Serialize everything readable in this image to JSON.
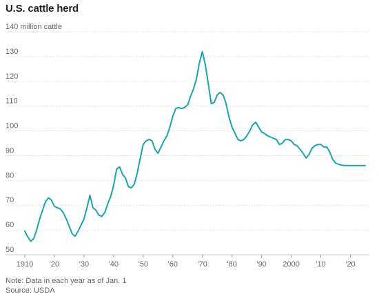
{
  "title": "U.S. cattle herd",
  "note": "Note: Data in each year as of Jan. 1",
  "source": "Source: USDA",
  "colors": {
    "line": "#1aa3ad",
    "grid": "#d4d4d4",
    "text": "#666666"
  },
  "chart_data": {
    "type": "line",
    "title": "U.S. cattle herd",
    "ylabel": "",
    "xlabel": "",
    "ylim": [
      50,
      140
    ],
    "xlim": [
      1910,
      2025
    ],
    "y_ticks": [
      50,
      60,
      70,
      80,
      90,
      100,
      110,
      120,
      130,
      140
    ],
    "y_tick_labels": [
      "50",
      "60",
      "70",
      "80",
      "90",
      "100",
      "110",
      "120",
      "130",
      "140 million cattle"
    ],
    "x_ticks": [
      1910,
      1920,
      1930,
      1940,
      1950,
      1960,
      1970,
      1980,
      1990,
      2000,
      2010,
      2020
    ],
    "x_tick_labels": [
      "1910",
      "'20",
      "'30",
      "'40",
      "'50",
      "'60",
      "'70",
      "'80",
      "'90",
      "2000",
      "'10",
      "'20"
    ],
    "grid": "horizontal",
    "series": [
      {
        "x": [
          1910,
          1911,
          1912,
          1913,
          1914,
          1915,
          1916,
          1917,
          1918,
          1919,
          1920,
          1921,
          1922,
          1923,
          1924,
          1925,
          1926,
          1927,
          1928,
          1929,
          1930,
          1931,
          1932,
          1933,
          1934,
          1935,
          1936,
          1937,
          1938,
          1939,
          1940,
          1941,
          1942,
          1943,
          1944,
          1945,
          1946,
          1947,
          1948,
          1949,
          1950,
          1951,
          1952,
          1953,
          1954,
          1955,
          1956,
          1957,
          1958,
          1959,
          1960,
          1961,
          1962,
          1963,
          1964,
          1965,
          1966,
          1967,
          1968,
          1969,
          1970,
          1971,
          1972,
          1973,
          1974,
          1975,
          1976,
          1977,
          1978,
          1979,
          1980,
          1981,
          1982,
          1983,
          1984,
          1985,
          1986,
          1987,
          1988,
          1989,
          1990,
          1991,
          1992,
          1993,
          1994,
          1995,
          1996,
          1997,
          1998,
          1999,
          2000,
          2001,
          2002,
          2003,
          2004,
          2005,
          2006,
          2007,
          2008,
          2009,
          2010,
          2011,
          2012,
          2013,
          2014,
          2015,
          2016,
          2017,
          2018,
          2019,
          2020,
          2021,
          2022,
          2023,
          2024,
          2025
        ],
        "values": [
          59.5,
          57.2,
          55.5,
          56.5,
          60.0,
          64.5,
          68.0,
          71.5,
          73.0,
          72.0,
          69.5,
          69.0,
          68.5,
          67.0,
          64.5,
          61.5,
          58.5,
          57.5,
          59.5,
          62.0,
          64.5,
          69.0,
          74.0,
          69.0,
          68.0,
          66.0,
          65.5,
          67.0,
          70.5,
          73.5,
          78.0,
          84.5,
          85.5,
          82.5,
          81.0,
          77.5,
          77.0,
          78.5,
          83.0,
          89.0,
          94.5,
          96.0,
          96.5,
          96.0,
          92.5,
          91.0,
          93.5,
          96.0,
          98.0,
          101.5,
          106.0,
          109.0,
          109.5,
          109.0,
          109.5,
          110.5,
          114.0,
          117.0,
          121.0,
          127.5,
          132.0,
          126.5,
          119.0,
          111.0,
          111.5,
          114.5,
          115.5,
          114.5,
          111.0,
          105.5,
          101.5,
          99.0,
          96.5,
          96.0,
          96.5,
          98.0,
          100.0,
          102.5,
          103.5,
          101.5,
          99.5,
          99.0,
          98.0,
          97.5,
          97.0,
          96.5,
          94.5,
          95.0,
          96.5,
          96.5,
          96.0,
          94.5,
          94.0,
          92.5,
          91.0,
          89.0,
          90.5,
          93.0,
          94.0,
          94.5,
          94.5,
          93.5,
          93.5,
          91.5,
          88.5,
          87.0,
          86.5,
          86.2,
          86.0,
          86.0,
          86.0,
          86.0,
          86.0,
          86.0,
          86.0,
          86.0
        ]
      }
    ]
  }
}
